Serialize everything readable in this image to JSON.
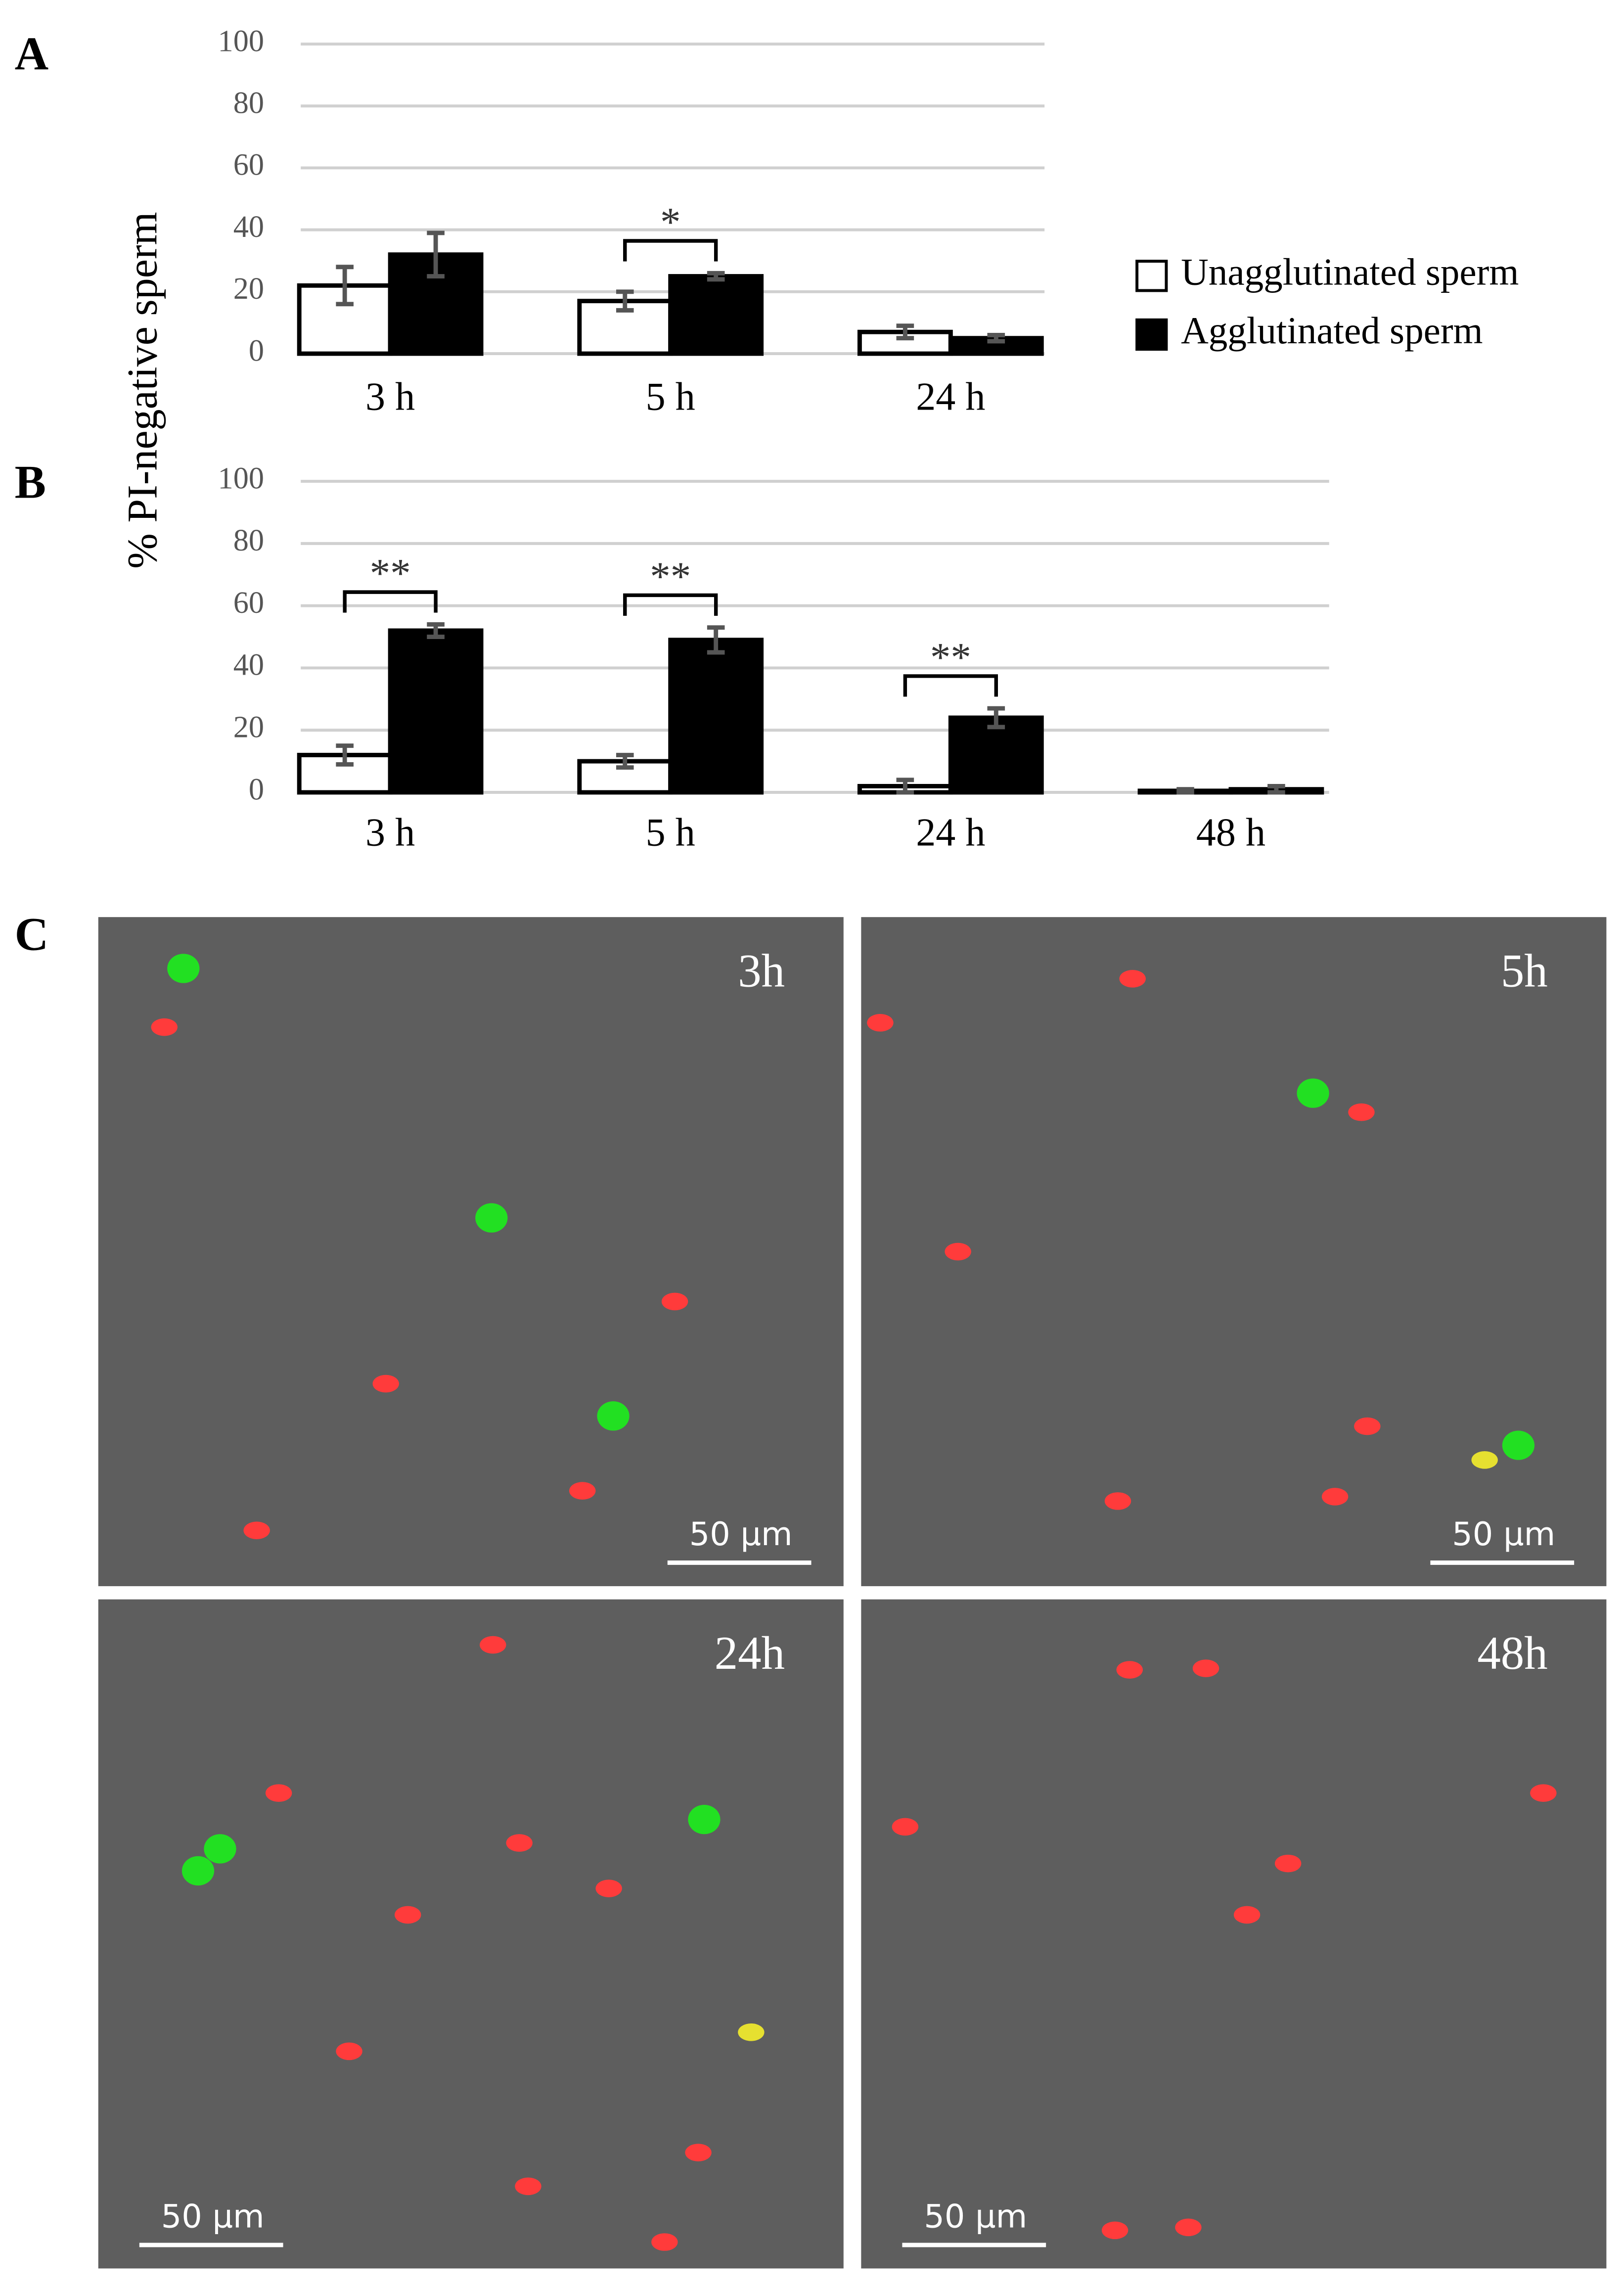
{
  "shared_y_label": "% PI-negative sperm",
  "chart_data": [
    {
      "type": "bar",
      "panel_label": "A",
      "categories": [
        "3 h",
        "5 h",
        "24 h"
      ],
      "series": [
        {
          "name": "Unagglutinated sperm",
          "color": "#ffffff",
          "values": [
            22,
            17,
            7
          ],
          "errors": [
            6,
            3,
            2
          ]
        },
        {
          "name": "Agglutinated sperm",
          "color": "#000000",
          "values": [
            32,
            25,
            5
          ],
          "errors": [
            7,
            1,
            1
          ]
        }
      ],
      "ylim": [
        0,
        100
      ],
      "yticks": [
        0,
        20,
        40,
        60,
        80,
        100
      ],
      "grid": true,
      "legend": "right",
      "annotations": [
        {
          "text": "*",
          "category": "5 h"
        }
      ]
    },
    {
      "type": "bar",
      "panel_label": "B",
      "categories": [
        "3 h",
        "5 h",
        "24 h",
        "48 h"
      ],
      "series": [
        {
          "name": "Unagglutinated sperm",
          "color": "#ffffff",
          "values": [
            12,
            10,
            2,
            0.5
          ],
          "errors": [
            3,
            2,
            2,
            0.5
          ]
        },
        {
          "name": "Agglutinated sperm",
          "color": "#000000",
          "values": [
            52,
            49,
            24,
            1
          ],
          "errors": [
            2,
            4,
            3,
            1
          ]
        }
      ],
      "ylim": [
        0,
        100
      ],
      "yticks": [
        0,
        20,
        40,
        60,
        80,
        100
      ],
      "grid": true,
      "annotations": [
        {
          "text": "**",
          "category": "3 h"
        },
        {
          "text": "**",
          "category": "5 h"
        },
        {
          "text": "**",
          "category": "24 h"
        }
      ]
    }
  ],
  "micrographs": {
    "panel_label": "C",
    "images": [
      {
        "time": "3h",
        "scale_bar": "50 μm"
      },
      {
        "time": "5h",
        "scale_bar": "50 μm"
      },
      {
        "time": "24h",
        "scale_bar": "50 μm"
      },
      {
        "time": "48h",
        "scale_bar": "50 μm"
      }
    ]
  }
}
